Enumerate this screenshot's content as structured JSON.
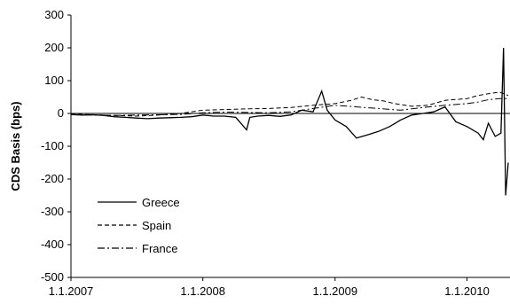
{
  "chart_data": {
    "type": "line",
    "title": "",
    "xlabel": "",
    "ylabel": "CDS Basis (bps)",
    "ylim": [
      -500,
      300
    ],
    "yticks": [
      300,
      200,
      100,
      0,
      -100,
      -200,
      -300,
      -400,
      -500
    ],
    "xticks": [
      "1.1.2007",
      "1.1.2008",
      "1.1.2009",
      "1.1.2010"
    ],
    "xlim": [
      "2007-01-01",
      "2010-04-30"
    ],
    "legend_position": "lower-left",
    "grid": false,
    "zero_line": true,
    "series": [
      {
        "name": "Greece",
        "style": "solid",
        "color": "#000000",
        "points": [
          [
            "2007-01-01",
            -3
          ],
          [
            "2007-02-01",
            -5
          ],
          [
            "2007-03-01",
            -4
          ],
          [
            "2007-04-01",
            -6
          ],
          [
            "2007-05-01",
            -10
          ],
          [
            "2007-06-01",
            -12
          ],
          [
            "2007-07-01",
            -14
          ],
          [
            "2007-08-01",
            -16
          ],
          [
            "2007-09-01",
            -14
          ],
          [
            "2007-10-01",
            -13
          ],
          [
            "2007-11-01",
            -12
          ],
          [
            "2007-12-01",
            -10
          ],
          [
            "2008-01-01",
            -5
          ],
          [
            "2008-02-01",
            -8
          ],
          [
            "2008-03-01",
            -8
          ],
          [
            "2008-04-01",
            -12
          ],
          [
            "2008-05-01",
            -50
          ],
          [
            "2008-05-10",
            -12
          ],
          [
            "2008-06-01",
            -8
          ],
          [
            "2008-07-01",
            -6
          ],
          [
            "2008-08-01",
            -9
          ],
          [
            "2008-09-01",
            -5
          ],
          [
            "2008-10-01",
            10
          ],
          [
            "2008-11-01",
            5
          ],
          [
            "2008-11-25",
            68
          ],
          [
            "2008-12-10",
            10
          ],
          [
            "2009-01-01",
            -20
          ],
          [
            "2009-02-01",
            -40
          ],
          [
            "2009-03-01",
            -75
          ],
          [
            "2009-04-01",
            -65
          ],
          [
            "2009-05-01",
            -55
          ],
          [
            "2009-06-01",
            -40
          ],
          [
            "2009-07-01",
            -20
          ],
          [
            "2009-08-01",
            -5
          ],
          [
            "2009-09-01",
            0
          ],
          [
            "2009-10-01",
            5
          ],
          [
            "2009-11-01",
            20
          ],
          [
            "2009-12-01",
            -25
          ],
          [
            "2010-01-01",
            -40
          ],
          [
            "2010-02-01",
            -60
          ],
          [
            "2010-02-15",
            -80
          ],
          [
            "2010-03-01",
            -30
          ],
          [
            "2010-03-20",
            -70
          ],
          [
            "2010-04-05",
            -60
          ],
          [
            "2010-04-12",
            200
          ],
          [
            "2010-04-18",
            -250
          ],
          [
            "2010-04-25",
            -150
          ]
        ]
      },
      {
        "name": "Spain",
        "style": "dashed",
        "color": "#000000",
        "points": [
          [
            "2007-01-01",
            -2
          ],
          [
            "2007-03-01",
            -4
          ],
          [
            "2007-05-01",
            -6
          ],
          [
            "2007-07-01",
            -8
          ],
          [
            "2007-09-01",
            -5
          ],
          [
            "2007-11-01",
            0
          ],
          [
            "2008-01-01",
            10
          ],
          [
            "2008-03-01",
            12
          ],
          [
            "2008-05-01",
            14
          ],
          [
            "2008-07-01",
            15
          ],
          [
            "2008-09-01",
            18
          ],
          [
            "2008-11-01",
            25
          ],
          [
            "2009-01-01",
            30
          ],
          [
            "2009-02-15",
            40
          ],
          [
            "2009-03-15",
            50
          ],
          [
            "2009-04-15",
            42
          ],
          [
            "2009-05-15",
            38
          ],
          [
            "2009-06-15",
            30
          ],
          [
            "2009-08-01",
            22
          ],
          [
            "2009-09-15",
            25
          ],
          [
            "2009-11-01",
            40
          ],
          [
            "2010-01-01",
            45
          ],
          [
            "2010-02-01",
            55
          ],
          [
            "2010-03-01",
            60
          ],
          [
            "2010-04-01",
            65
          ],
          [
            "2010-04-25",
            55
          ]
        ]
      },
      {
        "name": "France",
        "style": "dashdot",
        "color": "#000000",
        "points": [
          [
            "2007-01-01",
            -4
          ],
          [
            "2007-03-01",
            -5
          ],
          [
            "2007-05-01",
            -6
          ],
          [
            "2007-07-01",
            -5
          ],
          [
            "2007-09-01",
            -4
          ],
          [
            "2007-11-01",
            -3
          ],
          [
            "2008-01-01",
            2
          ],
          [
            "2008-03-01",
            4
          ],
          [
            "2008-05-01",
            3
          ],
          [
            "2008-07-01",
            2
          ],
          [
            "2008-09-01",
            5
          ],
          [
            "2008-11-01",
            15
          ],
          [
            "2009-01-01",
            25
          ],
          [
            "2009-03-01",
            20
          ],
          [
            "2009-05-01",
            15
          ],
          [
            "2009-07-01",
            10
          ],
          [
            "2009-09-01",
            18
          ],
          [
            "2009-11-01",
            25
          ],
          [
            "2010-01-01",
            30
          ],
          [
            "2010-02-01",
            35
          ],
          [
            "2010-03-01",
            42
          ],
          [
            "2010-04-01",
            45
          ],
          [
            "2010-04-25",
            45
          ]
        ]
      }
    ]
  }
}
